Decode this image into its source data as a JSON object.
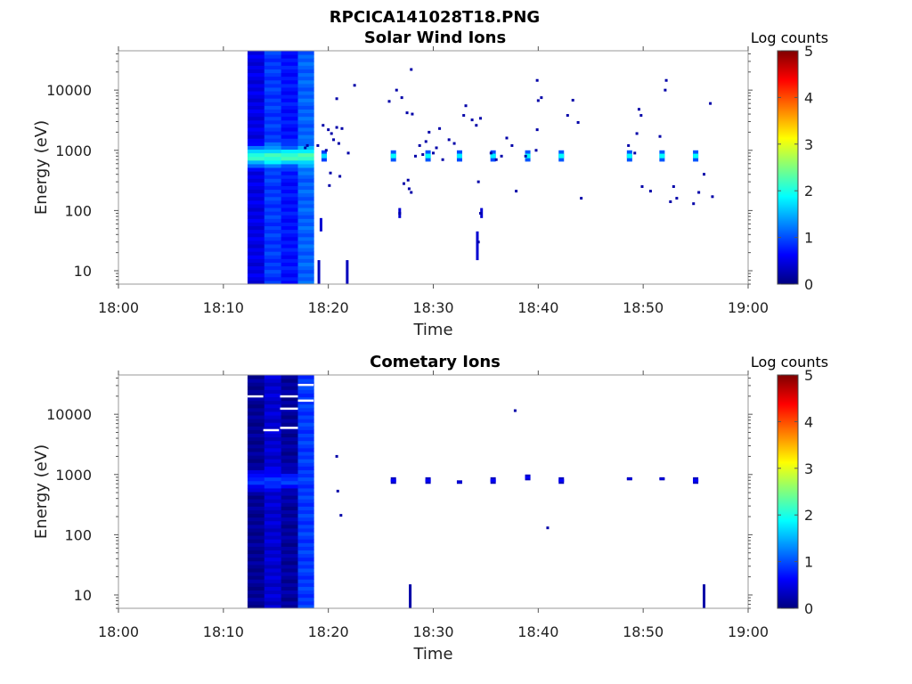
{
  "figure_title": "RPCICA141028T18.PNG",
  "colormap": [
    "#00007f",
    "#0000ff",
    "#007fff",
    "#00ffff",
    "#7fff7f",
    "#ffff00",
    "#ff7f00",
    "#ff0000",
    "#7f0000"
  ],
  "chart_data": [
    {
      "type": "heatmap",
      "title": "Solar Wind Ions",
      "xlabel": "Time",
      "ylabel": "Energy (eV)",
      "x_ticks": [
        "18:00",
        "18:10",
        "18:20",
        "18:30",
        "18:40",
        "18:50",
        "19:00"
      ],
      "xlim_minutes": [
        0,
        60
      ],
      "y_ticks": [
        10,
        100,
        1000,
        10000
      ],
      "y_scale": "log",
      "ylim": [
        6,
        45000
      ],
      "colorbar_label": "Log counts",
      "clim": [
        0,
        5
      ],
      "colorbar_ticks": [
        0,
        1,
        2,
        3,
        4,
        5
      ],
      "dense_block": {
        "t_start": 12.3,
        "t_end": 18.6,
        "e_min": 6,
        "e_max": 45000,
        "columns": [
          {
            "t0": 12.3,
            "t1": 13.9,
            "base": 0.5
          },
          {
            "t0": 13.9,
            "t1": 15.5,
            "base": 0.9
          },
          {
            "t0": 15.5,
            "t1": 17.1,
            "base": 0.7
          },
          {
            "t0": 17.1,
            "t1": 18.6,
            "base": 1.1
          }
        ],
        "peak_energy": 800,
        "peak_level": 2.2
      },
      "bursts": [
        {
          "t": 19.6,
          "e_lo": 650,
          "e_hi": 1000,
          "level": 1.7
        },
        {
          "t": 26.2,
          "e_lo": 650,
          "e_hi": 1000,
          "level": 1.9
        },
        {
          "t": 29.5,
          "e_lo": 650,
          "e_hi": 1000,
          "level": 1.9
        },
        {
          "t": 32.5,
          "e_lo": 650,
          "e_hi": 1000,
          "level": 1.8
        },
        {
          "t": 35.7,
          "e_lo": 650,
          "e_hi": 1000,
          "level": 1.8
        },
        {
          "t": 39.0,
          "e_lo": 650,
          "e_hi": 1000,
          "level": 1.9
        },
        {
          "t": 42.2,
          "e_lo": 650,
          "e_hi": 1000,
          "level": 1.9
        },
        {
          "t": 48.7,
          "e_lo": 650,
          "e_hi": 1000,
          "level": 1.9
        },
        {
          "t": 51.8,
          "e_lo": 650,
          "e_hi": 1000,
          "level": 1.9
        },
        {
          "t": 55.0,
          "e_lo": 650,
          "e_hi": 1000,
          "level": 1.9
        }
      ],
      "dots": [
        [
          19.0,
          1200
        ],
        [
          19.5,
          2600
        ],
        [
          20.0,
          2200
        ],
        [
          20.3,
          1900
        ],
        [
          20.8,
          2400
        ],
        [
          21.3,
          2300
        ],
        [
          19.8,
          1000
        ],
        [
          20.5,
          1500
        ],
        [
          21.0,
          1300
        ],
        [
          21.9,
          900
        ],
        [
          20.2,
          420
        ],
        [
          20.1,
          260
        ],
        [
          21.1,
          370
        ],
        [
          20.8,
          7200
        ],
        [
          22.5,
          12000
        ],
        [
          25.8,
          6500
        ],
        [
          26.5,
          10000
        ],
        [
          27.0,
          7500
        ],
        [
          27.5,
          4200
        ],
        [
          27.9,
          22000
        ],
        [
          28.0,
          4000
        ],
        [
          27.6,
          320
        ],
        [
          27.2,
          280
        ],
        [
          27.7,
          230
        ],
        [
          27.9,
          200
        ],
        [
          26.8,
          90
        ],
        [
          28.3,
          800
        ],
        [
          28.7,
          1200
        ],
        [
          29.0,
          850
        ],
        [
          29.3,
          1400
        ],
        [
          29.6,
          2000
        ],
        [
          30.0,
          900
        ],
        [
          30.3,
          1100
        ],
        [
          30.6,
          2300
        ],
        [
          30.9,
          700
        ],
        [
          31.5,
          1500
        ],
        [
          32.0,
          1300
        ],
        [
          32.9,
          3800
        ],
        [
          33.1,
          5500
        ],
        [
          33.7,
          3200
        ],
        [
          34.1,
          2600
        ],
        [
          34.5,
          3400
        ],
        [
          34.3,
          300
        ],
        [
          34.5,
          90
        ],
        [
          34.3,
          30
        ],
        [
          35.5,
          900
        ],
        [
          36.0,
          700
        ],
        [
          36.5,
          800
        ],
        [
          37.0,
          1600
        ],
        [
          37.5,
          1200
        ],
        [
          37.9,
          210
        ],
        [
          38.8,
          800
        ],
        [
          39.8,
          1000
        ],
        [
          39.9,
          2200
        ],
        [
          40.3,
          7500
        ],
        [
          39.9,
          14500
        ],
        [
          40.0,
          6700
        ],
        [
          42.8,
          3800
        ],
        [
          43.3,
          6800
        ],
        [
          43.8,
          2900
        ],
        [
          44.1,
          160
        ],
        [
          48.6,
          1200
        ],
        [
          49.2,
          900
        ],
        [
          49.4,
          1900
        ],
        [
          49.6,
          4800
        ],
        [
          49.8,
          3800
        ],
        [
          49.9,
          250
        ],
        [
          50.7,
          210
        ],
        [
          51.6,
          1700
        ],
        [
          52.1,
          10000
        ],
        [
          52.2,
          14500
        ],
        [
          52.6,
          140
        ],
        [
          52.9,
          250
        ],
        [
          53.2,
          160
        ],
        [
          54.8,
          130
        ],
        [
          55.3,
          200
        ],
        [
          55.8,
          400
        ],
        [
          56.4,
          6000
        ],
        [
          56.6,
          170
        ],
        [
          18.0,
          1200
        ],
        [
          17.8,
          1100
        ]
      ],
      "streaks": [
        {
          "t": 19.3,
          "e_lo": 45,
          "e_hi": 75,
          "level": 0.4
        },
        {
          "t": 19.1,
          "e_lo": 6,
          "e_hi": 15,
          "level": 0.3
        },
        {
          "t": 21.8,
          "e_lo": 6,
          "e_hi": 15,
          "level": 0.3
        },
        {
          "t": 34.2,
          "e_lo": 15,
          "e_hi": 45,
          "level": 0.4
        },
        {
          "t": 26.8,
          "e_lo": 75,
          "e_hi": 110,
          "level": 0.4
        },
        {
          "t": 34.6,
          "e_lo": 75,
          "e_hi": 110,
          "level": 0.4
        }
      ]
    },
    {
      "type": "heatmap",
      "title": "Cometary Ions",
      "xlabel": "Time",
      "ylabel": "Energy (eV)",
      "x_ticks": [
        "18:00",
        "18:10",
        "18:20",
        "18:30",
        "18:40",
        "18:50",
        "19:00"
      ],
      "xlim_minutes": [
        0,
        60
      ],
      "y_ticks": [
        10,
        100,
        1000,
        10000
      ],
      "y_scale": "log",
      "ylim": [
        6,
        45000
      ],
      "colorbar_label": "Log counts",
      "clim": [
        0,
        5
      ],
      "colorbar_ticks": [
        0,
        1,
        2,
        3,
        4,
        5
      ],
      "dense_block": {
        "t_start": 12.3,
        "t_end": 18.6,
        "e_min": 6,
        "e_max": 45000,
        "columns": [
          {
            "t0": 12.3,
            "t1": 13.9,
            "base": 0.1
          },
          {
            "t0": 13.9,
            "t1": 15.5,
            "base": 0.4
          },
          {
            "t0": 15.5,
            "t1": 17.1,
            "base": 0.15
          },
          {
            "t0": 17.1,
            "t1": 18.6,
            "base": 0.9
          }
        ],
        "peak_energy": 800,
        "peak_level": 0.9
      },
      "gaps": [
        {
          "t0": 12.3,
          "t1": 13.8,
          "e": 20000
        },
        {
          "t0": 13.8,
          "t1": 15.3,
          "e": 5500
        },
        {
          "t0": 15.4,
          "t1": 17.1,
          "e": 20000
        },
        {
          "t0": 15.4,
          "t1": 17.1,
          "e": 12500
        },
        {
          "t0": 15.4,
          "t1": 17.1,
          "e": 6000
        },
        {
          "t0": 17.1,
          "t1": 18.6,
          "e": 17000
        },
        {
          "t0": 17.1,
          "t1": 18.6,
          "e": 31000
        }
      ],
      "bursts": [
        {
          "t": 26.2,
          "e_lo": 700,
          "e_hi": 900,
          "level": 0.6
        },
        {
          "t": 29.5,
          "e_lo": 700,
          "e_hi": 900,
          "level": 0.6
        },
        {
          "t": 32.5,
          "e_lo": 700,
          "e_hi": 800,
          "level": 0.5
        },
        {
          "t": 35.7,
          "e_lo": 700,
          "e_hi": 900,
          "level": 0.6
        },
        {
          "t": 39.0,
          "e_lo": 800,
          "e_hi": 1000,
          "level": 0.6
        },
        {
          "t": 42.2,
          "e_lo": 700,
          "e_hi": 900,
          "level": 0.6
        },
        {
          "t": 48.7,
          "e_lo": 800,
          "e_hi": 900,
          "level": 0.5
        },
        {
          "t": 51.8,
          "e_lo": 800,
          "e_hi": 900,
          "level": 0.5
        },
        {
          "t": 55.0,
          "e_lo": 700,
          "e_hi": 900,
          "level": 0.6
        }
      ],
      "dots": [
        [
          20.8,
          2000
        ],
        [
          20.9,
          530
        ],
        [
          21.2,
          210
        ],
        [
          40.9,
          130
        ],
        [
          37.8,
          11500
        ]
      ],
      "streaks": [
        {
          "t": 27.8,
          "e_lo": 6,
          "e_hi": 15,
          "level": 0.2
        },
        {
          "t": 55.8,
          "e_lo": 6,
          "e_hi": 15,
          "level": 0.2
        }
      ]
    }
  ]
}
